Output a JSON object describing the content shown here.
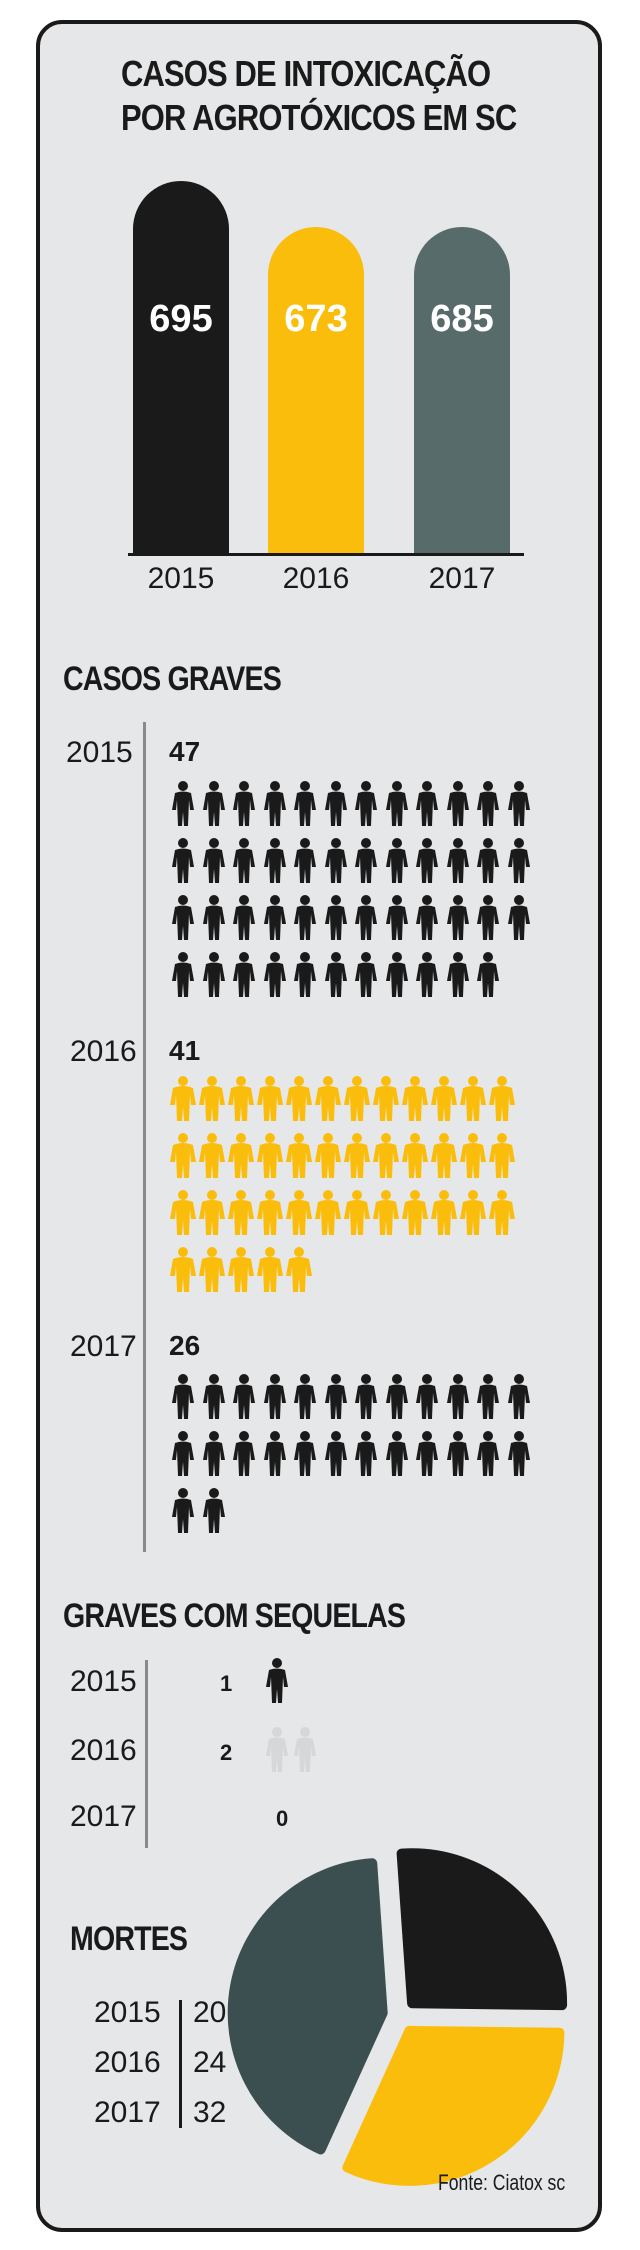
{
  "chart_data": [
    {
      "type": "bar",
      "title_lines": [
        "CASOS DE INTOXICAÇÃO",
        "POR AGROTÓXICOS EM SC"
      ],
      "categories": [
        "2015",
        "2016",
        "2017"
      ],
      "values": [
        695,
        673,
        685
      ],
      "value_labels": [
        "695",
        "673",
        "685"
      ],
      "colors": [
        "#1a1a1a",
        "#fbbd0c",
        "#586b6b"
      ]
    },
    {
      "type": "pictogram",
      "title": "CASOS GRAVES",
      "categories": [
        "2015",
        "2016",
        "2017"
      ],
      "values": [
        47,
        41,
        26
      ],
      "value_labels": [
        "47",
        "41",
        "26"
      ],
      "colors": [
        "#1a1a1a",
        "#fbbd0c",
        "#1a1a1a"
      ]
    },
    {
      "type": "pictogram",
      "title": "GRAVES COM SEQUELAS",
      "categories": [
        "2015",
        "2016",
        "2017"
      ],
      "values": [
        1,
        2,
        0
      ],
      "value_labels": [
        "1",
        "2",
        "0"
      ],
      "colors": [
        "#1a1a1a",
        "#d6d7d8",
        "#1a1a1a"
      ]
    },
    {
      "type": "pie",
      "title": "MORTES",
      "categories": [
        "2015",
        "2016",
        "2017"
      ],
      "values": [
        20,
        24,
        32
      ],
      "value_labels": [
        "20",
        "24",
        "32"
      ],
      "colors": [
        "#1a1a1a",
        "#fbbd0c",
        "#3b4e50"
      ]
    }
  ],
  "source": "Fonte: Ciatox sc"
}
